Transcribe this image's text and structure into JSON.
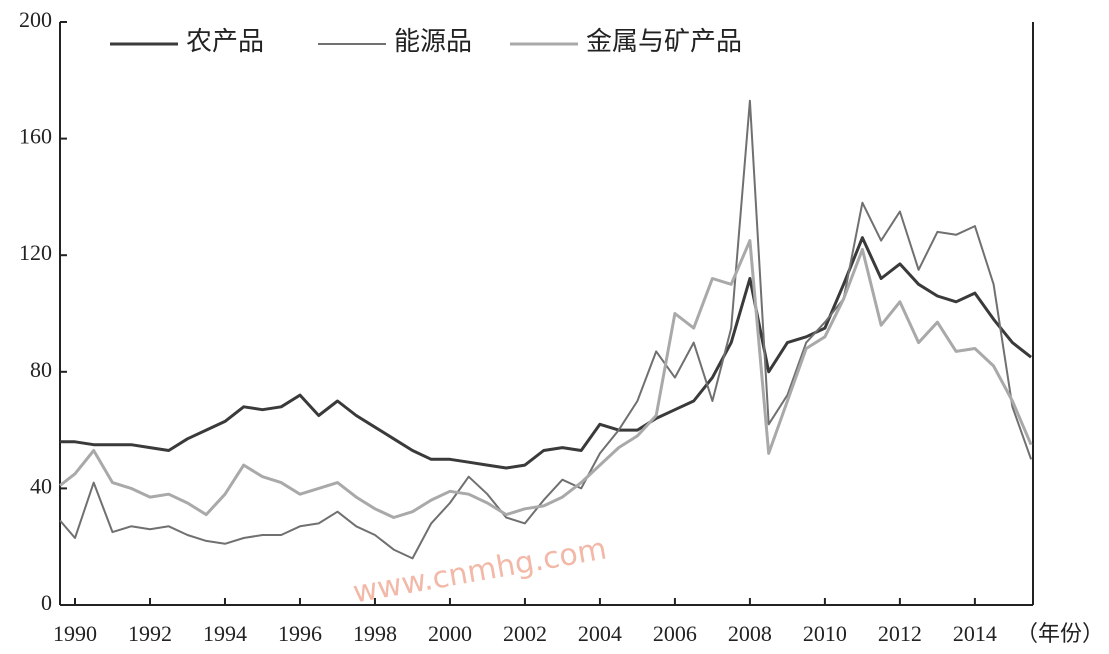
{
  "chart_data": {
    "type": "line",
    "x_label": "（年份）",
    "watermark": "www.cnmhg.com",
    "x": [
      1989.6,
      1990,
      1990.5,
      1991,
      1991.5,
      1992,
      1992.5,
      1993,
      1993.5,
      1994,
      1994.5,
      1995,
      1995.5,
      1996,
      1996.5,
      1997,
      1997.5,
      1998,
      1998.5,
      1999,
      1999.5,
      2000,
      2000.5,
      2001,
      2001.5,
      2002,
      2002.5,
      2003,
      2003.5,
      2004,
      2004.5,
      2005,
      2005.5,
      2006,
      2006.5,
      2007,
      2007.5,
      2008,
      2008.5,
      2009,
      2009.5,
      2010,
      2010.5,
      2011,
      2011.5,
      2012,
      2012.5,
      2013,
      2013.5,
      2014,
      2014.5,
      2015,
      2015.5
    ],
    "series": [
      {
        "name": "农产品",
        "color": "#3a3a3a",
        "values": [
          56,
          56,
          55,
          55,
          55,
          54,
          53,
          57,
          60,
          63,
          68,
          67,
          68,
          72,
          65,
          70,
          65,
          61,
          57,
          53,
          50,
          50,
          49,
          48,
          47,
          48,
          53,
          54,
          53,
          62,
          60,
          60,
          64,
          67,
          70,
          78,
          90,
          112,
          80,
          90,
          92,
          95,
          110,
          126,
          112,
          117,
          110,
          106,
          104,
          107,
          98,
          90,
          85
        ]
      },
      {
        "name": "能源品",
        "color": "#707070",
        "values": [
          29,
          23,
          42,
          25,
          27,
          26,
          27,
          24,
          22,
          21,
          23,
          24,
          24,
          27,
          28,
          32,
          27,
          24,
          19,
          16,
          28,
          35,
          44,
          38,
          30,
          28,
          36,
          43,
          40,
          52,
          60,
          70,
          87,
          78,
          90,
          70,
          95,
          173,
          62,
          72,
          90,
          97,
          105,
          138,
          125,
          135,
          115,
          128,
          127,
          130,
          110,
          68,
          50
        ]
      },
      {
        "name": "金属与矿产品",
        "color": "#a9a9a9",
        "values": [
          41,
          45,
          53,
          42,
          40,
          37,
          38,
          35,
          31,
          38,
          48,
          44,
          42,
          38,
          40,
          42,
          37,
          33,
          30,
          32,
          36,
          39,
          38,
          35,
          31,
          33,
          34,
          37,
          42,
          48,
          54,
          58,
          65,
          100,
          95,
          112,
          110,
          125,
          52,
          70,
          88,
          92,
          105,
          122,
          96,
          104,
          90,
          97,
          87,
          88,
          82,
          70,
          55
        ]
      }
    ],
    "xlim": [
      1989.6,
      2015.55
    ],
    "xticks": [
      1990,
      1992,
      1994,
      1996,
      1998,
      2000,
      2002,
      2004,
      2006,
      2008,
      2010,
      2012,
      2014
    ],
    "ylim": [
      0,
      200
    ],
    "yticks": [
      0,
      40,
      80,
      120,
      160,
      200
    ],
    "legend": "top-left"
  }
}
